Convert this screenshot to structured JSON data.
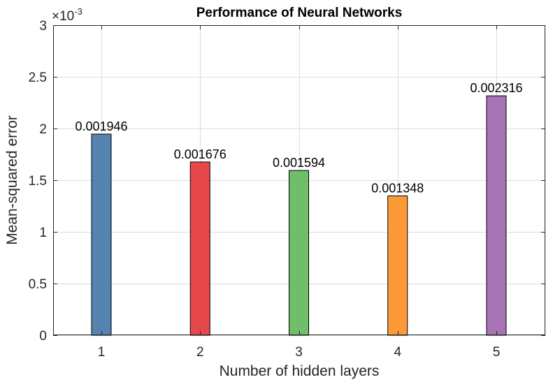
{
  "chart_data": {
    "type": "bar",
    "title": "Performance of Neural Networks",
    "xlabel": "Number of hidden layers",
    "ylabel": "Mean-squared error",
    "categories": [
      "1",
      "2",
      "3",
      "4",
      "5"
    ],
    "values": [
      0.001946,
      0.001676,
      0.001594,
      0.001348,
      0.002316
    ],
    "data_labels": [
      "0.001946",
      "0.001676",
      "0.001594",
      "0.001348",
      "0.002316"
    ],
    "bar_colors": [
      "#5584b1",
      "#e6474a",
      "#70be6a",
      "#fd9a38",
      "#a874b5"
    ],
    "ylim": [
      0,
      0.003
    ],
    "y_ticks": [
      0,
      0.0005,
      0.001,
      0.0015,
      0.002,
      0.0025,
      0.003
    ],
    "y_tick_labels": [
      "0",
      "0.5",
      "1",
      "1.5",
      "2",
      "2.5",
      "3"
    ],
    "y_exponent_base": "×10",
    "y_exponent_power": "-3",
    "grid": true,
    "legend": null
  }
}
